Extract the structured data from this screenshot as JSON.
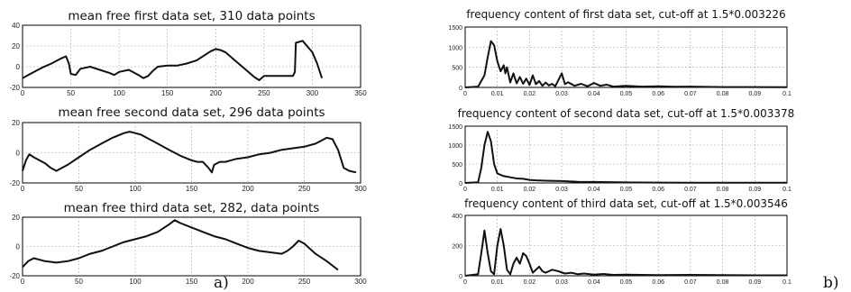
{
  "panel_labels": [
    "a)",
    "b)"
  ],
  "chart_data": [
    {
      "type": "line",
      "title": "mean free first data set, 310 data points",
      "xlim": [
        0,
        350
      ],
      "ylim": [
        -20,
        40
      ],
      "xticks": [
        0,
        50,
        100,
        150,
        200,
        250,
        300,
        350
      ],
      "yticks": [
        -20,
        0,
        20,
        40
      ],
      "grid": true,
      "series": [
        {
          "x": [
            0,
            10,
            20,
            30,
            40,
            45,
            48,
            50,
            55,
            60,
            70,
            80,
            90,
            95,
            100,
            110,
            120,
            125,
            130,
            135,
            140,
            150,
            160,
            170,
            180,
            190,
            195,
            200,
            205,
            210,
            220,
            230,
            240,
            245,
            250,
            260,
            270,
            280,
            282,
            283,
            290,
            300,
            305,
            310
          ],
          "y": [
            -11,
            -6,
            -1,
            3,
            8,
            10,
            3,
            -7,
            -8,
            -2,
            0,
            -3,
            -6,
            -8,
            -5,
            -3,
            -8,
            -11,
            -9,
            -4,
            0,
            1,
            1,
            3,
            6,
            12,
            15,
            17,
            16,
            14,
            6,
            -2,
            -10,
            -13,
            -9,
            -9,
            -9,
            -9,
            -5,
            23,
            25,
            14,
            3,
            -11
          ]
        }
      ]
    },
    {
      "type": "line",
      "title": "mean free second data set, 296 data points",
      "xlim": [
        0,
        300
      ],
      "ylim": [
        -20,
        20
      ],
      "xticks": [
        0,
        50,
        100,
        150,
        200,
        250,
        300
      ],
      "yticks": [
        -20,
        0,
        20
      ],
      "grid": true,
      "series": [
        {
          "x": [
            0,
            3,
            6,
            10,
            15,
            20,
            25,
            30,
            40,
            50,
            60,
            70,
            80,
            90,
            95,
            100,
            105,
            110,
            120,
            130,
            140,
            150,
            155,
            160,
            165,
            168,
            170,
            175,
            180,
            190,
            200,
            210,
            220,
            230,
            240,
            250,
            260,
            265,
            270,
            275,
            280,
            285,
            290,
            296
          ],
          "y": [
            -12,
            -5,
            -1,
            -3,
            -5,
            -7,
            -10,
            -12,
            -8,
            -3,
            2,
            6,
            10,
            13,
            14,
            13,
            12,
            10,
            6,
            2,
            -2,
            -5,
            -6,
            -6,
            -10,
            -13,
            -8,
            -6,
            -6,
            -4,
            -3,
            -1,
            0,
            2,
            3,
            4,
            6,
            8,
            10,
            9,
            2,
            -10,
            -12,
            -13
          ]
        }
      ]
    },
    {
      "type": "line",
      "title": "mean free third data set, 282, data points",
      "xlim": [
        0,
        300
      ],
      "ylim": [
        -20,
        20
      ],
      "xticks": [
        0,
        50,
        100,
        150,
        200,
        250,
        300
      ],
      "yticks": [
        -20,
        0,
        20
      ],
      "grid": true,
      "series": [
        {
          "x": [
            0,
            5,
            10,
            20,
            30,
            40,
            50,
            60,
            70,
            80,
            90,
            100,
            110,
            120,
            130,
            135,
            140,
            150,
            160,
            170,
            180,
            190,
            200,
            210,
            220,
            230,
            235,
            240,
            245,
            250,
            260,
            270,
            280
          ],
          "y": [
            -14,
            -10,
            -8,
            -10,
            -11,
            -10,
            -8,
            -5,
            -3,
            0,
            3,
            5,
            7,
            10,
            15,
            18,
            16,
            13,
            10,
            7,
            5,
            2,
            -1,
            -3,
            -4,
            -5,
            -3,
            0,
            4,
            2,
            -5,
            -10,
            -16
          ]
        }
      ]
    },
    {
      "type": "line",
      "title": "frequency content of first data set, cut-off at 1.5*0.003226",
      "xlim": [
        0,
        0.1
      ],
      "ylim": [
        0,
        1500
      ],
      "xticks": [
        "0",
        "0.01",
        "0.02",
        "0.03",
        "0.04",
        "0.05",
        "0.06",
        "0.07",
        "0.08",
        "0.09",
        "0.1"
      ],
      "xtick_values": [
        0,
        0.01,
        0.02,
        0.03,
        0.04,
        0.05,
        0.06,
        0.07,
        0.08,
        0.09,
        0.1
      ],
      "yticks": [
        0,
        500,
        1000,
        1500
      ],
      "grid": true,
      "series": [
        {
          "x": [
            0,
            0.004,
            0.006,
            0.007,
            0.008,
            0.009,
            0.01,
            0.011,
            0.012,
            0.0125,
            0.013,
            0.014,
            0.015,
            0.016,
            0.017,
            0.018,
            0.019,
            0.02,
            0.021,
            0.022,
            0.023,
            0.024,
            0.025,
            0.026,
            0.027,
            0.028,
            0.03,
            0.031,
            0.032,
            0.034,
            0.036,
            0.038,
            0.04,
            0.042,
            0.044,
            0.046,
            0.05,
            0.055,
            0.06,
            0.065,
            0.07,
            0.08,
            0.09,
            0.1
          ],
          "y": [
            0,
            20,
            300,
            750,
            1150,
            1050,
            650,
            400,
            550,
            350,
            500,
            120,
            350,
            100,
            260,
            90,
            220,
            60,
            300,
            80,
            160,
            40,
            120,
            50,
            90,
            30,
            350,
            80,
            130,
            40,
            90,
            30,
            110,
            40,
            70,
            20,
            40,
            20,
            30,
            15,
            20,
            10,
            10,
            5
          ]
        }
      ]
    },
    {
      "type": "line",
      "title": "frequency content of second data set, cut-off at 1.5*0.003378",
      "xlim": [
        0,
        0.1
      ],
      "ylim": [
        0,
        1500
      ],
      "xticks": [
        "0",
        "0.01",
        "0.02",
        "0.03",
        "0.04",
        "0.05",
        "0.06",
        "0.07",
        "0.08",
        "0.09",
        "0.1"
      ],
      "xtick_values": [
        0,
        0.01,
        0.02,
        0.03,
        0.04,
        0.05,
        0.06,
        0.07,
        0.08,
        0.09,
        0.1
      ],
      "yticks": [
        0,
        500,
        1000,
        1500
      ],
      "grid": true,
      "series": [
        {
          "x": [
            0,
            0.004,
            0.005,
            0.006,
            0.007,
            0.008,
            0.009,
            0.01,
            0.012,
            0.014,
            0.016,
            0.018,
            0.02,
            0.022,
            0.025,
            0.03,
            0.035,
            0.04,
            0.05,
            0.06,
            0.08,
            0.1
          ],
          "y": [
            0,
            20,
            400,
            1000,
            1350,
            1100,
            500,
            250,
            180,
            150,
            120,
            110,
            80,
            70,
            60,
            50,
            30,
            25,
            15,
            10,
            5,
            5
          ]
        }
      ]
    },
    {
      "type": "line",
      "title": "frequency content of third data set, cut-off at 1.5*0.003546",
      "xlim": [
        0,
        0.1
      ],
      "ylim": [
        0,
        400
      ],
      "xticks": [
        "0",
        "0.01",
        "0.02",
        "0.03",
        "0.04",
        "0.05",
        "0.06",
        "0.07",
        "0.08",
        "0.09",
        "0.1"
      ],
      "xtick_values": [
        0,
        0.01,
        0.02,
        0.03,
        0.04,
        0.05,
        0.06,
        0.07,
        0.08,
        0.09,
        0.1
      ],
      "yticks": [
        0,
        200,
        400
      ],
      "grid": true,
      "series": [
        {
          "x": [
            0,
            0.004,
            0.005,
            0.006,
            0.007,
            0.008,
            0.009,
            0.01,
            0.011,
            0.012,
            0.013,
            0.014,
            0.015,
            0.016,
            0.017,
            0.018,
            0.019,
            0.02,
            0.021,
            0.022,
            0.023,
            0.024,
            0.025,
            0.027,
            0.029,
            0.031,
            0.033,
            0.035,
            0.037,
            0.04,
            0.043,
            0.046,
            0.05,
            0.06,
            0.07,
            0.08,
            0.09,
            0.1
          ],
          "y": [
            0,
            10,
            150,
            300,
            150,
            30,
            10,
            200,
            310,
            200,
            40,
            10,
            80,
            120,
            80,
            150,
            130,
            80,
            20,
            40,
            60,
            30,
            20,
            40,
            30,
            15,
            20,
            10,
            15,
            8,
            12,
            6,
            8,
            5,
            6,
            4,
            3,
            3
          ]
        }
      ]
    }
  ]
}
